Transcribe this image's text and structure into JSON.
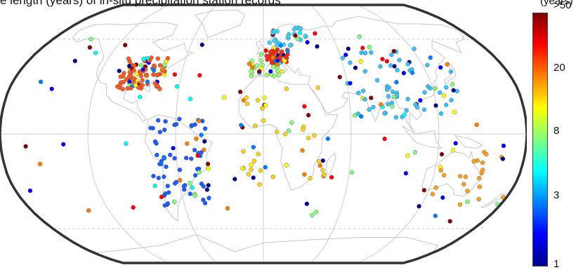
{
  "figure": {
    "title": "e length (years) of in-situ precipitation station records"
  },
  "colorbar": {
    "unit_label": "(years)",
    "ticks": [
      ">50",
      "20",
      "8",
      "3",
      "1"
    ],
    "scale": "log",
    "colors": [
      "#00008f",
      "#0000ff",
      "#0080ff",
      "#00ffff",
      "#80ff80",
      "#ffff00",
      "#ff8000",
      "#ff0000",
      "#800000"
    ]
  },
  "map": {
    "projection": "Robinson",
    "graticule_color": "#cfcfcf",
    "coast_color": "#c8c8c8",
    "frame_color": "#333333",
    "station_cluster_colors": {
      "north_america": "#ff5a1f",
      "central_europe": "#ff2a00",
      "europe_south": "#9cff7a",
      "scandinavia": "#39d4ff",
      "south_america": "#1e5bff",
      "africa": "#ffd51a",
      "asia": "#39c2ff",
      "oceania": "#ffa020"
    }
  }
}
